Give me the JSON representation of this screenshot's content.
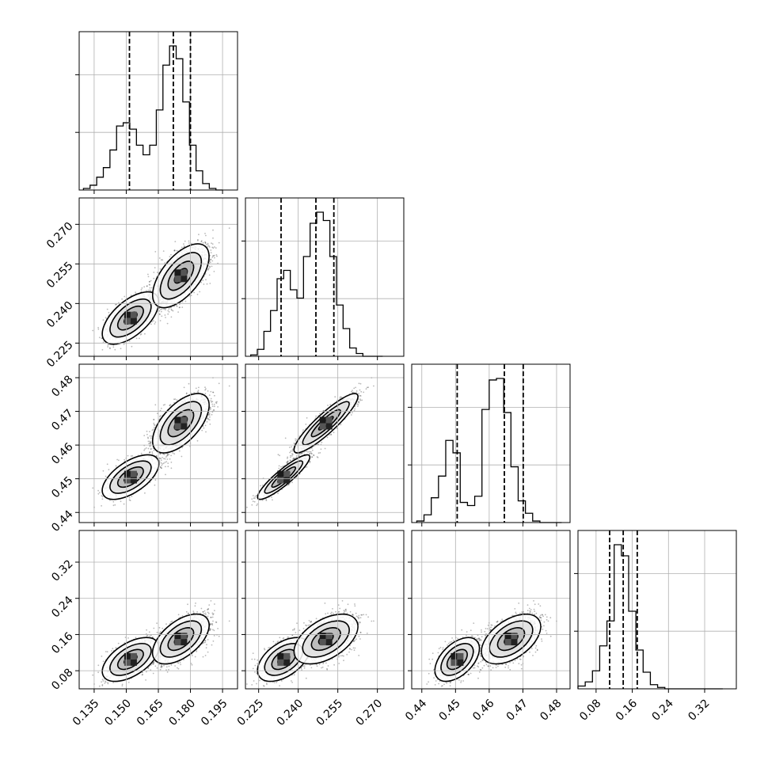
{
  "chart_data": {
    "type": "corner",
    "grid": true,
    "legend": "none",
    "colors": {
      "ink": "#000000",
      "grid": "#b0b0b0",
      "background": "#ffffff"
    },
    "parameters": [
      {
        "range": [
          0.128,
          0.202
        ],
        "ticks": [
          0.135,
          0.15,
          0.165,
          0.18,
          0.195
        ],
        "tick_labels": [
          "0.135",
          "0.150",
          "0.165",
          "0.180",
          "0.195"
        ]
      },
      {
        "range": [
          0.22,
          0.28
        ],
        "ticks": [
          0.225,
          0.24,
          0.255,
          0.27
        ],
        "tick_labels": [
          "0.225",
          "0.240",
          "0.255",
          "0.270"
        ]
      },
      {
        "range": [
          0.437,
          0.484
        ],
        "ticks": [
          0.44,
          0.45,
          0.46,
          0.47,
          0.48
        ],
        "tick_labels": [
          "0.44",
          "0.45",
          "0.46",
          "0.47",
          "0.48"
        ]
      },
      {
        "range": [
          0.04,
          0.39
        ],
        "ticks": [
          0.08,
          0.16,
          0.24,
          0.32
        ],
        "tick_labels": [
          "0.08",
          "0.16",
          "0.24",
          "0.32"
        ]
      }
    ],
    "histograms": [
      {
        "edges": [
          0.13,
          0.195
        ],
        "counts": [
          1,
          3,
          8,
          14,
          25,
          40,
          42,
          38,
          28,
          22,
          28,
          50,
          78,
          90,
          82,
          55,
          28,
          12,
          4,
          1,
          0
        ],
        "quantiles": [
          0.1515,
          0.172,
          0.18
        ]
      },
      {
        "edges": [
          0.222,
          0.272
        ],
        "counts": [
          1,
          5,
          18,
          33,
          56,
          62,
          48,
          42,
          72,
          96,
          104,
          98,
          72,
          37,
          20,
          6,
          2,
          0,
          0,
          0
        ],
        "quantiles": [
          0.2335,
          0.2467,
          0.2535
        ]
      },
      {
        "edges": [
          0.4385,
          0.4815
        ],
        "counts": [
          1,
          5,
          16,
          30,
          53,
          45,
          13,
          11,
          17,
          73,
          92,
          93,
          71,
          36,
          14,
          6,
          1,
          0,
          0,
          0
        ],
        "quantiles": [
          0.4505,
          0.4645,
          0.4701
        ]
      },
      {
        "edges": [
          0.04,
          0.36
        ],
        "counts": [
          2,
          5,
          13,
          31,
          49,
          104,
          96,
          56,
          28,
          12,
          3,
          1,
          0,
          0,
          0,
          0,
          0,
          0,
          0,
          0
        ],
        "quantiles": [
          0.11,
          0.14,
          0.171
        ]
      }
    ],
    "clusters": [
      {
        "weight": 0.36,
        "mean": [
          0.152,
          0.2345,
          0.4505,
          0.105
        ],
        "sd": [
          0.006,
          0.0045,
          0.003,
          0.022
        ]
      },
      {
        "weight": 0.64,
        "mean": [
          0.1755,
          0.2505,
          0.4665,
          0.15
        ],
        "sd": [
          0.006,
          0.0055,
          0.004,
          0.025
        ]
      }
    ]
  }
}
